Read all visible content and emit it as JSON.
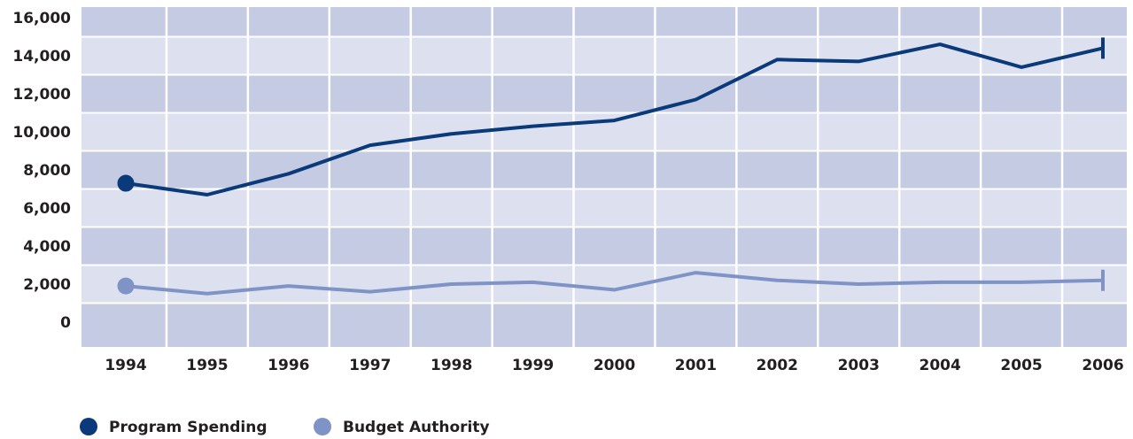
{
  "chart_data": {
    "type": "line",
    "categories": [
      "1994",
      "1995",
      "1996",
      "1997",
      "1998",
      "1999",
      "2000",
      "2001",
      "2002",
      "2003",
      "2004",
      "2005",
      "2006"
    ],
    "series": [
      {
        "name": "Program Spending",
        "color": "#0b3a7a",
        "values": [
          7300,
          6700,
          7800,
          9300,
          9900,
          10300,
          10600,
          11700,
          13800,
          13700,
          14600,
          13400,
          14400
        ]
      },
      {
        "name": "Budget Authority",
        "color": "#7f93c6",
        "values": [
          1900,
          1500,
          1900,
          1600,
          2000,
          2100,
          1700,
          2600,
          2200,
          2000,
          2100,
          2100,
          2200
        ]
      }
    ],
    "yticks": [
      "16,000",
      "14,000",
      "12,000",
      "10,000",
      "8,000",
      "6,000",
      "4,000",
      "2,000",
      "0"
    ],
    "ylim": [
      0,
      16000
    ],
    "grid": true,
    "legend_position": "bottom-left",
    "colors": {
      "band_dark": "#c5cbe3",
      "band_light": "#dde1ef",
      "gridline": "#ffffff"
    }
  }
}
